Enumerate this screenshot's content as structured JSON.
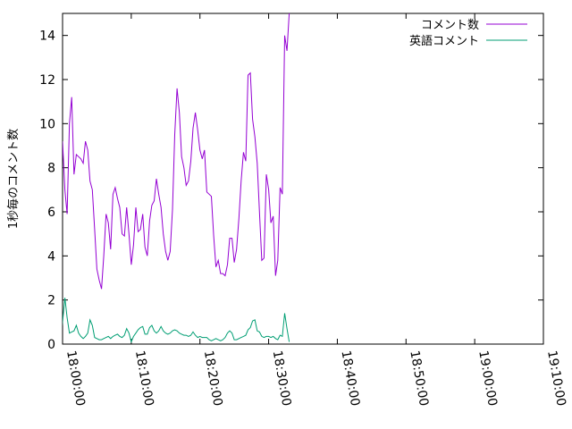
{
  "chart_data": {
    "type": "line",
    "title": "",
    "xlabel": "",
    "ylabel": "1秒毎のコメント数",
    "xlim": [
      "18:00:00",
      "19:10:00"
    ],
    "ylim": [
      0,
      15
    ],
    "x_ticks": [
      "18:00:00",
      "18:10:00",
      "18:20:00",
      "18:30:00",
      "18:40:00",
      "18:50:00",
      "19:00:00",
      "19:10:00"
    ],
    "y_ticks": [
      "0",
      "2",
      "4",
      "6",
      "8",
      "10",
      "12",
      "14"
    ],
    "legend_position": "top-right",
    "grid": false,
    "series": [
      {
        "name": "コメント数",
        "color": "#9400d3",
        "points": [
          [
            "17:59:40",
            5.0
          ],
          [
            "18:00:00",
            9.2
          ],
          [
            "18:00:20",
            7.0
          ],
          [
            "18:00:40",
            5.9
          ],
          [
            "18:01:00",
            10.0
          ],
          [
            "18:01:20",
            11.2
          ],
          [
            "18:01:40",
            7.7
          ],
          [
            "18:02:00",
            8.6
          ],
          [
            "18:02:20",
            8.5
          ],
          [
            "18:02:40",
            8.4
          ],
          [
            "18:03:00",
            8.2
          ],
          [
            "18:03:20",
            9.2
          ],
          [
            "18:03:40",
            8.8
          ],
          [
            "18:04:00",
            7.4
          ],
          [
            "18:04:20",
            7.0
          ],
          [
            "18:04:40",
            5.2
          ],
          [
            "18:05:00",
            3.4
          ],
          [
            "18:05:20",
            2.9
          ],
          [
            "18:05:40",
            2.5
          ],
          [
            "18:06:00",
            4.0
          ],
          [
            "18:06:20",
            5.9
          ],
          [
            "18:06:40",
            5.5
          ],
          [
            "18:07:00",
            4.3
          ],
          [
            "18:07:20",
            6.8
          ],
          [
            "18:07:40",
            7.1
          ],
          [
            "18:08:00",
            6.6
          ],
          [
            "18:08:20",
            6.2
          ],
          [
            "18:08:40",
            5.0
          ],
          [
            "18:09:00",
            4.9
          ],
          [
            "18:09:20",
            6.2
          ],
          [
            "18:09:40",
            5.0
          ],
          [
            "18:10:00",
            3.6
          ],
          [
            "18:10:20",
            4.5
          ],
          [
            "18:10:40",
            6.2
          ],
          [
            "18:11:00",
            5.1
          ],
          [
            "18:11:20",
            5.2
          ],
          [
            "18:11:40",
            5.9
          ],
          [
            "18:12:00",
            4.4
          ],
          [
            "18:12:20",
            4.0
          ],
          [
            "18:12:40",
            5.6
          ],
          [
            "18:13:00",
            6.3
          ],
          [
            "18:13:20",
            6.5
          ],
          [
            "18:13:40",
            7.5
          ],
          [
            "18:14:00",
            6.8
          ],
          [
            "18:14:20",
            6.2
          ],
          [
            "18:14:40",
            5.0
          ],
          [
            "18:15:00",
            4.2
          ],
          [
            "18:15:20",
            3.8
          ],
          [
            "18:15:40",
            4.2
          ],
          [
            "18:16:00",
            6.1
          ],
          [
            "18:16:20",
            9.5
          ],
          [
            "18:16:40",
            11.6
          ],
          [
            "18:17:00",
            10.5
          ],
          [
            "18:17:20",
            8.5
          ],
          [
            "18:17:40",
            8.0
          ],
          [
            "18:18:00",
            7.2
          ],
          [
            "18:18:20",
            7.4
          ],
          [
            "18:18:40",
            8.3
          ],
          [
            "18:19:00",
            9.8
          ],
          [
            "18:19:20",
            10.5
          ],
          [
            "18:19:40",
            9.7
          ],
          [
            "18:20:00",
            8.8
          ],
          [
            "18:20:20",
            8.4
          ],
          [
            "18:20:40",
            8.8
          ],
          [
            "18:21:00",
            6.9
          ],
          [
            "18:21:20",
            6.8
          ],
          [
            "18:21:40",
            6.7
          ],
          [
            "18:22:00",
            4.9
          ],
          [
            "18:22:20",
            3.5
          ],
          [
            "18:22:40",
            3.8
          ],
          [
            "18:23:00",
            3.2
          ],
          [
            "18:23:20",
            3.2
          ],
          [
            "18:23:40",
            3.1
          ],
          [
            "18:24:00",
            3.6
          ],
          [
            "18:24:20",
            4.8
          ],
          [
            "18:24:40",
            4.8
          ],
          [
            "18:25:00",
            3.7
          ],
          [
            "18:25:20",
            4.3
          ],
          [
            "18:25:40",
            5.7
          ],
          [
            "18:26:00",
            7.4
          ],
          [
            "18:26:20",
            8.7
          ],
          [
            "18:26:40",
            8.3
          ],
          [
            "18:27:00",
            12.2
          ],
          [
            "18:27:20",
            12.3
          ],
          [
            "18:27:40",
            10.2
          ],
          [
            "18:28:00",
            9.4
          ],
          [
            "18:28:20",
            8.2
          ],
          [
            "18:28:40",
            6.0
          ],
          [
            "18:29:00",
            3.8
          ],
          [
            "18:29:20",
            3.9
          ],
          [
            "18:29:40",
            7.7
          ],
          [
            "18:30:00",
            7.0
          ],
          [
            "18:30:20",
            5.5
          ],
          [
            "18:30:40",
            5.8
          ],
          [
            "18:31:00",
            3.1
          ],
          [
            "18:31:20",
            3.8
          ],
          [
            "18:31:40",
            7.1
          ],
          [
            "18:32:00",
            6.8
          ],
          [
            "18:32:20",
            14.0
          ],
          [
            "18:32:40",
            13.3
          ],
          [
            "18:33:00",
            15.0
          ]
        ]
      },
      {
        "name": "英語コメント",
        "color": "#009e73",
        "points": [
          [
            "17:59:40",
            0.0
          ],
          [
            "18:00:00",
            1.0
          ],
          [
            "18:00:20",
            2.1
          ],
          [
            "18:00:40",
            1.2
          ],
          [
            "18:01:00",
            0.5
          ],
          [
            "18:01:20",
            0.55
          ],
          [
            "18:01:40",
            0.6
          ],
          [
            "18:02:00",
            0.85
          ],
          [
            "18:02:20",
            0.5
          ],
          [
            "18:02:40",
            0.35
          ],
          [
            "18:03:00",
            0.25
          ],
          [
            "18:03:20",
            0.35
          ],
          [
            "18:03:40",
            0.5
          ],
          [
            "18:04:00",
            1.1
          ],
          [
            "18:04:20",
            0.85
          ],
          [
            "18:04:40",
            0.3
          ],
          [
            "18:05:00",
            0.25
          ],
          [
            "18:05:20",
            0.2
          ],
          [
            "18:05:40",
            0.2
          ],
          [
            "18:06:00",
            0.25
          ],
          [
            "18:06:20",
            0.3
          ],
          [
            "18:06:40",
            0.35
          ],
          [
            "18:07:00",
            0.25
          ],
          [
            "18:07:20",
            0.35
          ],
          [
            "18:07:40",
            0.4
          ],
          [
            "18:08:00",
            0.45
          ],
          [
            "18:08:20",
            0.35
          ],
          [
            "18:08:40",
            0.3
          ],
          [
            "18:09:00",
            0.4
          ],
          [
            "18:09:20",
            0.7
          ],
          [
            "18:09:40",
            0.5
          ],
          [
            "18:10:00",
            0.1
          ],
          [
            "18:10:20",
            0.35
          ],
          [
            "18:10:40",
            0.5
          ],
          [
            "18:11:00",
            0.65
          ],
          [
            "18:11:20",
            0.75
          ],
          [
            "18:11:40",
            0.8
          ],
          [
            "18:12:00",
            0.45
          ],
          [
            "18:12:20",
            0.45
          ],
          [
            "18:12:40",
            0.75
          ],
          [
            "18:13:00",
            0.85
          ],
          [
            "18:13:20",
            0.6
          ],
          [
            "18:13:40",
            0.5
          ],
          [
            "18:14:00",
            0.6
          ],
          [
            "18:14:20",
            0.8
          ],
          [
            "18:14:40",
            0.6
          ],
          [
            "18:15:00",
            0.5
          ],
          [
            "18:15:20",
            0.45
          ],
          [
            "18:15:40",
            0.5
          ],
          [
            "18:16:00",
            0.6
          ],
          [
            "18:16:20",
            0.65
          ],
          [
            "18:16:40",
            0.6
          ],
          [
            "18:17:00",
            0.5
          ],
          [
            "18:17:20",
            0.45
          ],
          [
            "18:17:40",
            0.4
          ],
          [
            "18:18:00",
            0.4
          ],
          [
            "18:18:20",
            0.35
          ],
          [
            "18:18:40",
            0.4
          ],
          [
            "18:19:00",
            0.55
          ],
          [
            "18:19:20",
            0.4
          ],
          [
            "18:19:40",
            0.3
          ],
          [
            "18:20:00",
            0.35
          ],
          [
            "18:20:20",
            0.3
          ],
          [
            "18:20:40",
            0.3
          ],
          [
            "18:21:00",
            0.3
          ],
          [
            "18:21:20",
            0.2
          ],
          [
            "18:21:40",
            0.15
          ],
          [
            "18:22:00",
            0.2
          ],
          [
            "18:22:20",
            0.25
          ],
          [
            "18:22:40",
            0.2
          ],
          [
            "18:23:00",
            0.15
          ],
          [
            "18:23:20",
            0.2
          ],
          [
            "18:23:40",
            0.3
          ],
          [
            "18:24:00",
            0.5
          ],
          [
            "18:24:20",
            0.6
          ],
          [
            "18:24:40",
            0.5
          ],
          [
            "18:25:00",
            0.2
          ],
          [
            "18:25:20",
            0.2
          ],
          [
            "18:25:40",
            0.25
          ],
          [
            "18:26:00",
            0.3
          ],
          [
            "18:26:20",
            0.35
          ],
          [
            "18:26:40",
            0.4
          ],
          [
            "18:27:00",
            0.65
          ],
          [
            "18:27:20",
            0.75
          ],
          [
            "18:27:40",
            1.05
          ],
          [
            "18:28:00",
            1.1
          ],
          [
            "18:28:20",
            0.6
          ],
          [
            "18:28:40",
            0.55
          ],
          [
            "18:29:00",
            0.35
          ],
          [
            "18:29:20",
            0.3
          ],
          [
            "18:29:40",
            0.35
          ],
          [
            "18:30:00",
            0.35
          ],
          [
            "18:30:20",
            0.3
          ],
          [
            "18:30:40",
            0.35
          ],
          [
            "18:31:00",
            0.25
          ],
          [
            "18:31:20",
            0.2
          ],
          [
            "18:31:40",
            0.4
          ],
          [
            "18:32:00",
            0.35
          ],
          [
            "18:32:20",
            1.4
          ],
          [
            "18:32:40",
            0.7
          ],
          [
            "18:33:00",
            0.1
          ]
        ]
      }
    ]
  }
}
